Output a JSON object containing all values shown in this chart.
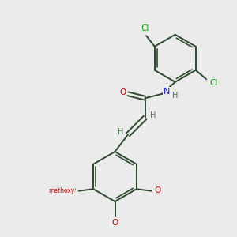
{
  "background_color": "#ebebeb",
  "bond_color": "#2d4a2d",
  "atom_colors": {
    "Cl": "#00aa00",
    "O": "#cc0000",
    "N": "#1a1aff",
    "H": "#4a7a4a",
    "C": "#2d4a2d"
  },
  "figsize": [
    3.0,
    3.0
  ],
  "dpi": 100,
  "xlim": [
    0,
    10
  ],
  "ylim": [
    0,
    10
  ]
}
